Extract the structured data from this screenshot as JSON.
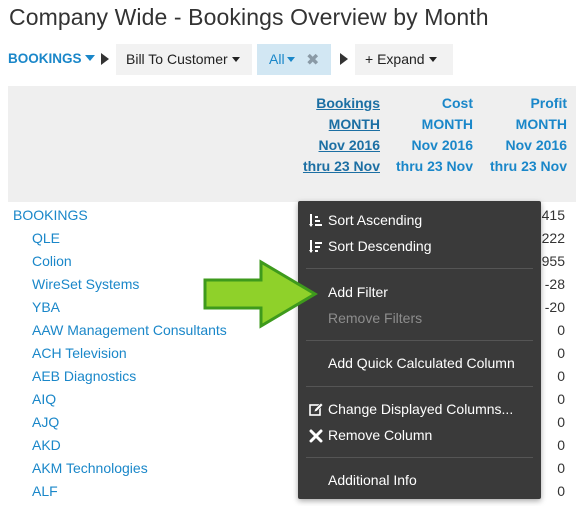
{
  "title": "Company Wide - Bookings Overview by Month",
  "toolbar": {
    "bookings_label": "BOOKINGS",
    "bill_to_label": "Bill To Customer",
    "all_label": "All",
    "all_clear": "✖",
    "expand_label": "+ Expand"
  },
  "columns": [
    {
      "line1": "Bookings",
      "line2": "MONTH",
      "line3": "Nov 2016",
      "line4": "thru 23 Nov"
    },
    {
      "line1": "Cost",
      "line2": "MONTH",
      "line3": "Nov 2016",
      "line4": "thru 23 Nov"
    },
    {
      "line1": "Profit",
      "line2": "MONTH",
      "line3": "Nov 2016",
      "line4": "thru 23 Nov"
    }
  ],
  "rows": [
    {
      "label": "BOOKINGS",
      "value": "415"
    },
    {
      "label": "QLE",
      "value": "222"
    },
    {
      "label": "Colion",
      "value": "955"
    },
    {
      "label": "WireSet Systems",
      "value": "-28"
    },
    {
      "label": "YBA",
      "value": "-20"
    },
    {
      "label": "AAW Management Consultants",
      "value": "0"
    },
    {
      "label": "ACH Television",
      "value": "0"
    },
    {
      "label": "AEB Diagnostics",
      "value": "0"
    },
    {
      "label": "AIQ",
      "value": "0"
    },
    {
      "label": "AJQ",
      "value": "0"
    },
    {
      "label": "AKD",
      "value": "0"
    },
    {
      "label": "AKM Technologies",
      "value": "0"
    },
    {
      "label": "ALF",
      "value": "0"
    }
  ],
  "menu": {
    "sort_ascending": "Sort Ascending",
    "sort_descending": "Sort Descending",
    "add_filter": "Add Filter",
    "remove_filters": "Remove Filters",
    "add_quick_calc": "Add Quick Calculated Column",
    "change_displayed": "Change Displayed Columns...",
    "remove_column": "Remove Column",
    "additional_info": "Additional Info"
  },
  "colors": {
    "link_blue": "#1a87c9",
    "menu_bg": "#3a3a3a",
    "highlight_arrow": "#8fd12a"
  }
}
